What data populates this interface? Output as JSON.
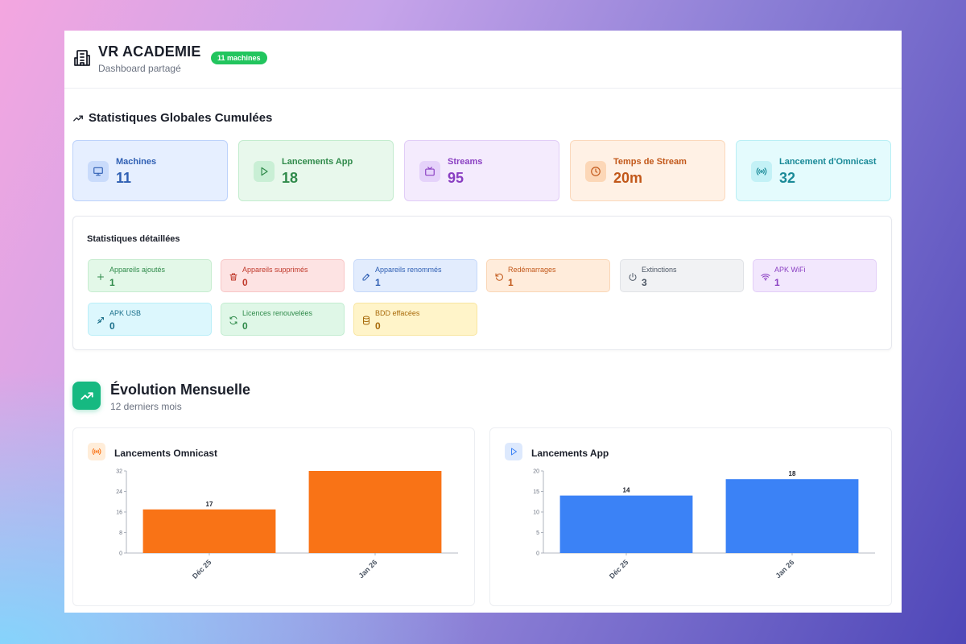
{
  "header": {
    "title": "VR ACADEMIE",
    "subtitle": "Dashboard partagé",
    "badge": "11 machines",
    "icon": "building-icon"
  },
  "global_stats": {
    "title": "Statistiques Globales Cumulées",
    "cards": [
      {
        "label": "Machines",
        "value": "11",
        "icon": "monitor-icon",
        "color": "#2f5fb3",
        "bg": "#e6efff",
        "border": "#bcd2fb",
        "icon_bg": "#c9dbfb"
      },
      {
        "label": "Lancements App",
        "value": "18",
        "icon": "play-icon",
        "color": "#2f8a4a",
        "bg": "#e8f8ec",
        "border": "#c3ecce",
        "icon_bg": "#c9efd5"
      },
      {
        "label": "Streams",
        "value": "95",
        "icon": "tv-icon",
        "color": "#8a3fc2",
        "bg": "#f4ebfd",
        "border": "#e1cdf7",
        "icon_bg": "#e5d2fa"
      },
      {
        "label": "Temps de Stream",
        "value": "20m",
        "icon": "clock-icon",
        "color": "#c2581a",
        "bg": "#fff1e5",
        "border": "#fbd8bb",
        "icon_bg": "#fcd7b7"
      },
      {
        "label": "Lancement d'Omnicast",
        "value": "32",
        "icon": "broadcast-icon",
        "color": "#1a8a98",
        "bg": "#e4fbfd",
        "border": "#b9eff5",
        "icon_bg": "#c3f1f6"
      }
    ]
  },
  "detailed_stats": {
    "title": "Statistiques détaillées",
    "items": [
      {
        "label": "Appareils ajoutés",
        "value": "1",
        "icon": "plus-icon",
        "color": "#2f8a4a",
        "bg": "#e3f8e8",
        "border": "#c6eccf"
      },
      {
        "label": "Appareils supprimés",
        "value": "0",
        "icon": "trash-icon",
        "color": "#c0392b",
        "bg": "#fde3e3",
        "border": "#f8c6c6"
      },
      {
        "label": "Appareils renommés",
        "value": "1",
        "icon": "edit-icon",
        "color": "#2f5fb3",
        "bg": "#e2ecfd",
        "border": "#c5d8f9"
      },
      {
        "label": "Redémarrages",
        "value": "1",
        "icon": "restart-icon",
        "color": "#c2581a",
        "bg": "#ffecdb",
        "border": "#fad6b6"
      },
      {
        "label": "Extinctions",
        "value": "3",
        "icon": "power-icon",
        "color": "#4b5563",
        "bg": "#f1f2f4",
        "border": "#e0e2e6"
      },
      {
        "label": "APK WiFi",
        "value": "1",
        "icon": "wifi-icon",
        "color": "#8a3fc2",
        "bg": "#f2e7fd",
        "border": "#e2cdf7"
      },
      {
        "label": "APK USB",
        "value": "0",
        "icon": "usb-icon",
        "color": "#1a6f8a",
        "bg": "#dcf7fd",
        "border": "#b9eef8"
      },
      {
        "label": "Licences renouvelées",
        "value": "0",
        "icon": "refresh-icon",
        "color": "#2f8a4a",
        "bg": "#dff7e7",
        "border": "#c2ecd0"
      },
      {
        "label": "BDD effacées",
        "value": "0",
        "icon": "database-icon",
        "color": "#a86a0a",
        "bg": "#fff4c9",
        "border": "#f8e5a0"
      }
    ]
  },
  "evolution": {
    "title": "Évolution Mensuelle",
    "subtitle": "12 derniers mois",
    "icon": "trending-up-icon"
  },
  "chart_data": [
    {
      "type": "bar",
      "title": "Lancements Omnicast",
      "icon": "broadcast-icon",
      "categories": [
        "Déc 25",
        "Jan 26"
      ],
      "values": [
        17,
        32
      ],
      "data_labels": [
        "17",
        ""
      ],
      "yticks": [
        0,
        8,
        16,
        24,
        32
      ],
      "ylim": [
        0,
        32
      ],
      "color": "#f97316",
      "icon_bg": "#ffedd9",
      "icon_color": "#f97316"
    },
    {
      "type": "bar",
      "title": "Lancements App",
      "icon": "play-icon",
      "categories": [
        "Déc 25",
        "Jan 26"
      ],
      "values": [
        14,
        18
      ],
      "data_labels": [
        "14",
        "18"
      ],
      "yticks": [
        0,
        5,
        10,
        15,
        20
      ],
      "ylim": [
        0,
        20
      ],
      "color": "#3b82f6",
      "icon_bg": "#dde9fd",
      "icon_color": "#3b82f6"
    }
  ]
}
